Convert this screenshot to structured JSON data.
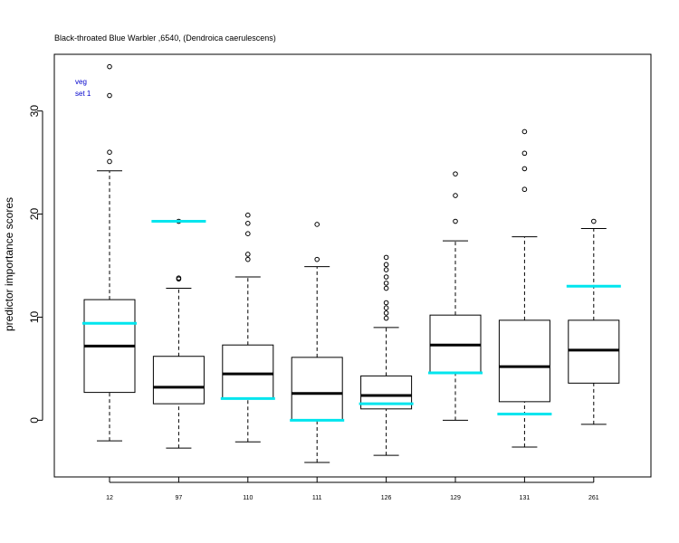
{
  "chart_data": {
    "type": "boxplot",
    "title": "Black-throated Blue Warbler ,6540, (Dendroica caerulescens)",
    "ylabel": "predictor importance scores",
    "xlabel": "",
    "ylim": [
      -5.5,
      35.5
    ],
    "yticks": [
      0,
      10,
      20,
      30
    ],
    "legend": {
      "lines": [
        "veg",
        "set 1"
      ],
      "color": "#0000cc",
      "position": "top-left"
    },
    "reference_color": "#00e5ee",
    "categories": [
      "12",
      "97",
      "110",
      "111",
      "126",
      "129",
      "131",
      "261"
    ],
    "boxes": [
      {
        "label": "12",
        "lower_whisker": -2.0,
        "q1": 2.7,
        "median": 7.2,
        "q3": 11.7,
        "upper_whisker": 24.2,
        "outliers": [
          25.1,
          26.0,
          31.5,
          34.3
        ],
        "reference": 9.4
      },
      {
        "label": "97",
        "lower_whisker": -2.7,
        "q1": 1.6,
        "median": 3.2,
        "q3": 6.2,
        "upper_whisker": 12.8,
        "outliers": [
          13.7,
          13.8,
          19.3
        ],
        "reference": 19.3
      },
      {
        "label": "110",
        "lower_whisker": -2.1,
        "q1": 2.1,
        "median": 4.5,
        "q3": 7.3,
        "upper_whisker": 13.9,
        "outliers": [
          15.6,
          16.1,
          18.1,
          19.1,
          19.9
        ],
        "reference": 2.1
      },
      {
        "label": "111",
        "lower_whisker": -4.1,
        "q1": 0.0,
        "median": 2.6,
        "q3": 6.1,
        "upper_whisker": 14.9,
        "outliers": [
          15.6,
          19.0
        ],
        "reference": 0.0
      },
      {
        "label": "126",
        "lower_whisker": -3.4,
        "q1": 1.1,
        "median": 2.4,
        "q3": 4.3,
        "upper_whisker": 9.0,
        "outliers": [
          9.9,
          10.4,
          10.9,
          11.4,
          12.8,
          13.3,
          13.9,
          14.6,
          15.1,
          15.8
        ],
        "reference": 1.6
      },
      {
        "label": "129",
        "lower_whisker": 0.0,
        "q1": 4.6,
        "median": 7.3,
        "q3": 10.2,
        "upper_whisker": 17.4,
        "outliers": [
          19.3,
          21.8,
          23.9
        ],
        "reference": 4.6
      },
      {
        "label": "131",
        "lower_whisker": -2.6,
        "q1": 1.8,
        "median": 5.2,
        "q3": 9.7,
        "upper_whisker": 17.8,
        "outliers": [
          22.4,
          24.4,
          25.9,
          28.0
        ],
        "reference": 0.6
      },
      {
        "label": "261",
        "lower_whisker": -0.4,
        "q1": 3.6,
        "median": 6.8,
        "q3": 9.7,
        "upper_whisker": 18.6,
        "outliers": [
          19.3
        ],
        "reference": 13.0
      }
    ]
  }
}
